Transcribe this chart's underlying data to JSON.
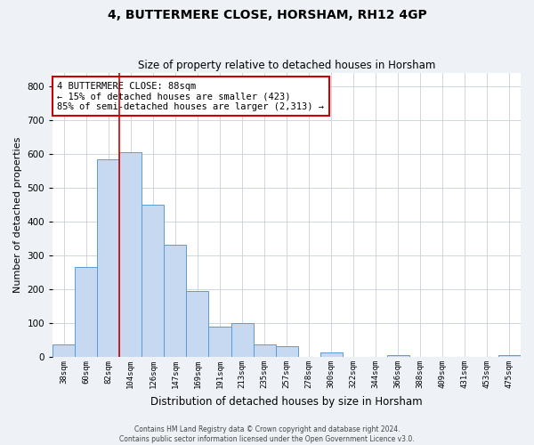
{
  "title": "4, BUTTERMERE CLOSE, HORSHAM, RH12 4GP",
  "subtitle": "Size of property relative to detached houses in Horsham",
  "xlabel": "Distribution of detached houses by size in Horsham",
  "ylabel": "Number of detached properties",
  "bar_labels": [
    "38sqm",
    "60sqm",
    "82sqm",
    "104sqm",
    "126sqm",
    "147sqm",
    "169sqm",
    "191sqm",
    "213sqm",
    "235sqm",
    "257sqm",
    "278sqm",
    "300sqm",
    "322sqm",
    "344sqm",
    "366sqm",
    "388sqm",
    "409sqm",
    "431sqm",
    "453sqm",
    "475sqm"
  ],
  "bar_values": [
    38,
    265,
    585,
    605,
    450,
    332,
    195,
    90,
    100,
    38,
    32,
    0,
    14,
    0,
    0,
    5,
    0,
    0,
    0,
    0,
    5
  ],
  "bar_color": "#c6d9f0",
  "bar_edge_color": "#5b9bd5",
  "vline_color": "#cc0000",
  "vline_index": 2.5,
  "ylim": [
    0,
    840
  ],
  "yticks": [
    0,
    100,
    200,
    300,
    400,
    500,
    600,
    700,
    800
  ],
  "annotation_text": "4 BUTTERMERE CLOSE: 88sqm\n← 15% of detached houses are smaller (423)\n85% of semi-detached houses are larger (2,313) →",
  "annotation_box_color": "#ffffff",
  "annotation_box_edge_color": "#cc0000",
  "footer_line1": "Contains HM Land Registry data © Crown copyright and database right 2024.",
  "footer_line2": "Contains public sector information licensed under the Open Government Licence v3.0.",
  "bg_color": "#eef2f7",
  "plot_bg_color": "#ffffff",
  "grid_color": "#c8d0dc"
}
